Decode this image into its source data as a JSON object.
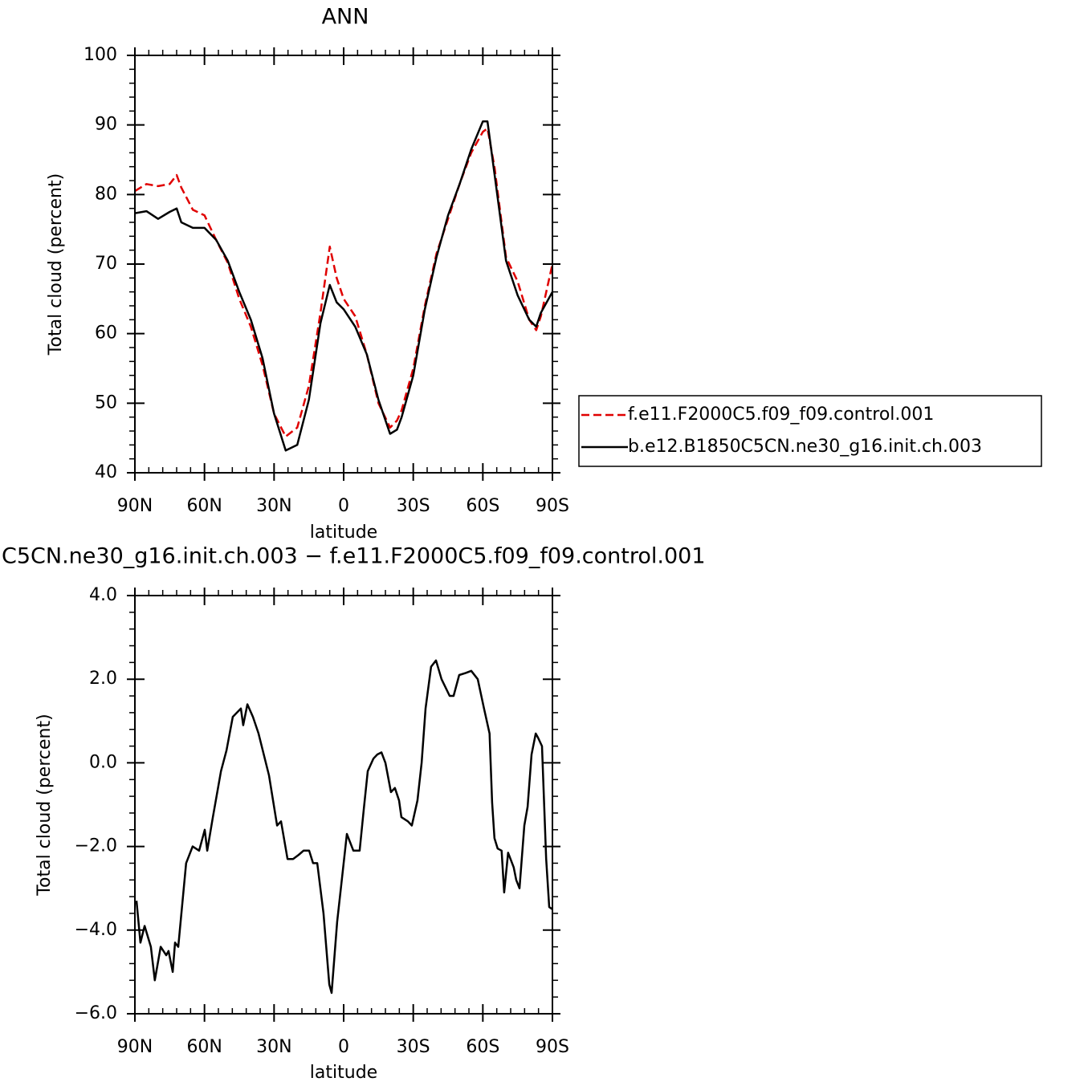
{
  "chart_data": [
    {
      "type": "line",
      "title": "ANN",
      "xlabel": "latitude",
      "ylabel": "Total cloud (percent)",
      "x": [
        90,
        85,
        80,
        75,
        72,
        70,
        65,
        60,
        55,
        50,
        45,
        40,
        35,
        30,
        25,
        20,
        15,
        10,
        6,
        3,
        0,
        -5,
        -10,
        -15,
        -20,
        -23,
        -25,
        -30,
        -35,
        -40,
        -45,
        -50,
        -55,
        -60,
        -62,
        -65,
        -70,
        -75,
        -80,
        -83,
        -85,
        -90
      ],
      "series": [
        {
          "name": "f.e11.F2000C5.f09_f09.control.001",
          "color": "#e00000",
          "dashed": true,
          "values": [
            80.5,
            81.5,
            81.2,
            81.5,
            82.8,
            81.0,
            77.8,
            77.0,
            73.5,
            70.2,
            65,
            61,
            55.5,
            48.5,
            45.2,
            46.5,
            52.5,
            63,
            72.5,
            68,
            65,
            62.5,
            57,
            50,
            46.5,
            47.5,
            49,
            55,
            64,
            71.5,
            76.5,
            81.5,
            86,
            89,
            89.5,
            84,
            71,
            67.5,
            62,
            60.5,
            62.5,
            70
          ]
        },
        {
          "name": "b.e12.B1850C5CN.ne30_g16.init.ch.003",
          "color": "#000000",
          "dashed": false,
          "values": [
            77.3,
            77.6,
            76.5,
            77.5,
            78,
            76,
            75.2,
            75.2,
            73.5,
            70.5,
            66,
            62,
            56.5,
            48.5,
            43.2,
            44,
            50.5,
            61.5,
            67,
            64.5,
            63.5,
            61,
            57,
            50.5,
            45.6,
            46.2,
            48,
            54,
            63.5,
            71,
            77,
            81.5,
            86.5,
            90.5,
            90.5,
            83,
            70.5,
            65.5,
            62,
            61,
            63,
            66
          ]
        }
      ],
      "xlim": [
        90,
        -90
      ],
      "xticks": [
        {
          "value": 90,
          "label": "90N"
        },
        {
          "value": 60,
          "label": "60N"
        },
        {
          "value": 30,
          "label": "30N"
        },
        0,
        {
          "value": -30,
          "label": "30S"
        },
        {
          "value": -60,
          "label": "60S"
        },
        {
          "value": -90,
          "label": "90S"
        }
      ],
      "ylim": [
        40,
        100
      ],
      "yticks": [
        40,
        50,
        60,
        70,
        80,
        90,
        100
      ],
      "legend": "right"
    },
    {
      "type": "line",
      "title": "C5CN.ne30_g16.init.ch.003 − f.e11.F2000C5.f09_f09.control.001",
      "xlabel": "latitude",
      "ylabel": "Total cloud (percent)",
      "x": [
        89.3,
        87.6,
        85.8,
        83.1,
        81.4,
        78.9,
        76.5,
        75.5,
        73.7,
        72.7,
        71.3,
        67.9,
        65.1,
        62.3,
        59.9,
        58.8,
        56.4,
        52.9,
        50.5,
        47.8,
        44.3,
        43.3,
        41.5,
        39.1,
        36.7,
        32.2,
        28.7,
        27.0,
        24.2,
        21.8,
        19.4,
        17.3,
        14.9,
        13.2,
        11.4,
        8.7,
        6.2,
        5.2,
        2.8,
        1.0,
        -1.4,
        -4.2,
        -6.9,
        -8.7,
        -10.4,
        -12.8,
        -14.5,
        -16.3,
        -18.0,
        -20.4,
        -22.1,
        -23.9,
        -24.9,
        -27.7,
        -29.4,
        -31.8,
        -33.6,
        -35.3,
        -37.7,
        -39.8,
        -42.2,
        -45.7,
        -47.4,
        -49.8,
        -52.6,
        -55.0,
        -57.8,
        -60.5,
        -62.9,
        -64.0,
        -65.0,
        -66.4,
        -68.1,
        -69.2,
        -70.9,
        -73.3,
        -74.4,
        -75.8,
        -77.9,
        -79.3,
        -81.0,
        -82.8,
        -83.8,
        -85.5,
        -87.3,
        -88.6,
        -90.0
      ],
      "series": [
        {
          "color": "#000000",
          "dashed": false,
          "values": [
            -3.3,
            -4.3,
            -3.9,
            -4.4,
            -5.2,
            -4.4,
            -4.6,
            -4.5,
            -5.0,
            -4.3,
            -4.4,
            -2.4,
            -2.0,
            -2.1,
            -1.6,
            -2.1,
            -1.3,
            -0.2,
            0.3,
            1.1,
            1.3,
            0.9,
            1.4,
            1.1,
            0.7,
            -0.3,
            -1.5,
            -1.4,
            -2.3,
            -2.3,
            -2.2,
            -2.1,
            -2.1,
            -2.4,
            -2.4,
            -3.6,
            -5.3,
            -5.5,
            -3.8,
            -2.9,
            -1.7,
            -2.1,
            -2.1,
            -1.1,
            -0.2,
            0.1,
            0.2,
            0.25,
            0,
            -0.7,
            -0.6,
            -0.9,
            -1.3,
            -1.4,
            -1.5,
            -0.9,
            0,
            1.3,
            2.3,
            2.45,
            2.0,
            1.6,
            1.6,
            2.1,
            2.15,
            2.2,
            2.0,
            1.3,
            0.7,
            -0.95,
            -1.8,
            -2.05,
            -2.1,
            -3.1,
            -2.15,
            -2.5,
            -2.8,
            -3.0,
            -1.5,
            -1.05,
            0.2,
            0.7,
            0.6,
            0.4,
            -2.3,
            -3.45,
            -3.5
          ]
        }
      ],
      "xlim": [
        90,
        -90
      ],
      "xticks": [
        {
          "value": 90,
          "label": "90N"
        },
        {
          "value": 60,
          "label": "60N"
        },
        {
          "value": 30,
          "label": "30N"
        },
        0,
        {
          "value": -30,
          "label": "30S"
        },
        {
          "value": -60,
          "label": "60S"
        },
        {
          "value": -90,
          "label": "90S"
        }
      ],
      "ylim": [
        -6,
        4
      ],
      "yticks": [
        {
          "value": -6,
          "label": "−6.0"
        },
        {
          "value": -4,
          "label": "−4.0"
        },
        {
          "value": -2,
          "label": "−2.0"
        },
        {
          "value": 0,
          "label": "0.0"
        },
        {
          "value": 2,
          "label": "2.0"
        },
        {
          "value": 4,
          "label": "4.0"
        }
      ]
    }
  ]
}
